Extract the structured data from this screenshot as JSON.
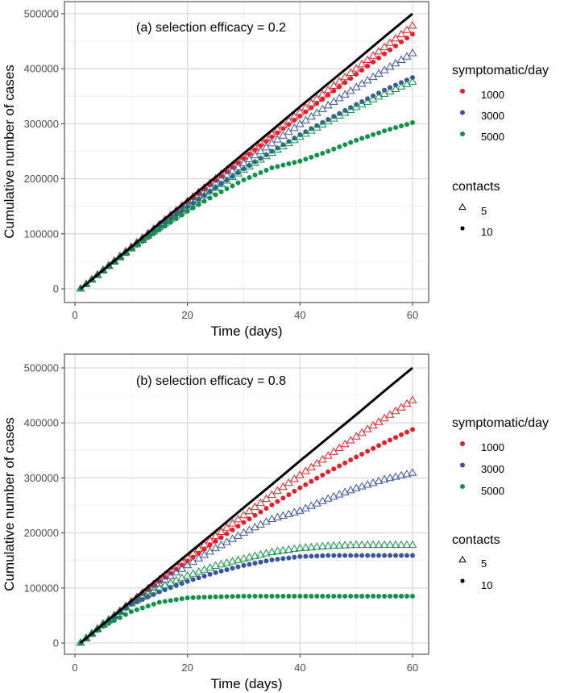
{
  "colors": {
    "1000": "#ee1c25",
    "3000": "#3a53a4",
    "5000": "#0f9447",
    "baseline": "#000000"
  },
  "chart_data": [
    {
      "type": "scatter",
      "annotation": "(a) selection efficacy = 0.2",
      "xlabel": "Time (days)",
      "ylabel": "Cumulative number of cases",
      "xlim": [
        0,
        60
      ],
      "ylim": [
        0,
        500000
      ],
      "xticks": [
        "0",
        "20",
        "40",
        "60"
      ],
      "yticks": [
        "0",
        "100000",
        "200000",
        "300000",
        "400000",
        "500000"
      ],
      "grid": true,
      "legend_position": "right",
      "legend": {
        "color_title": "symptomatic/day",
        "color_entries": [
          "1000",
          "3000",
          "5000"
        ],
        "shape_title": "contacts",
        "shape_entries": [
          {
            "label": "5",
            "shape": "open-triangle"
          },
          {
            "label": "10",
            "shape": "filled-circle"
          }
        ]
      },
      "x": [
        1,
        5,
        10,
        15,
        20,
        25,
        30,
        35,
        40,
        45,
        50,
        55,
        60
      ],
      "line": {
        "values": [
          0,
          34000,
          76000,
          119000,
          161000,
          203000,
          246000,
          288000,
          331000,
          373000,
          415000,
          458000,
          500000
        ]
      },
      "series": [
        {
          "symptomatic": "1000",
          "contacts": "5",
          "values": [
            0,
            34000,
            76000,
            117000,
            159000,
            200000,
            240000,
            281000,
            321000,
            361000,
            400000,
            439000,
            478000
          ]
        },
        {
          "symptomatic": "1000",
          "contacts": "10",
          "values": [
            0,
            34000,
            75000,
            117000,
            157000,
            197000,
            237000,
            276000,
            314000,
            352000,
            390000,
            427000,
            463000
          ]
        },
        {
          "symptomatic": "3000",
          "contacts": "5",
          "values": [
            0,
            34000,
            75000,
            115000,
            154000,
            192000,
            228000,
            264000,
            299000,
            333000,
            366000,
            397000,
            428000
          ]
        },
        {
          "symptomatic": "3000",
          "contacts": "10",
          "values": [
            0,
            33000,
            74000,
            112000,
            149000,
            184000,
            218000,
            250000,
            280000,
            308000,
            335000,
            361000,
            384000
          ]
        },
        {
          "symptomatic": "5000",
          "contacts": "5",
          "values": [
            0,
            33000,
            73000,
            112000,
            148000,
            183000,
            216000,
            247000,
            276000,
            304000,
            330000,
            354000,
            376000
          ]
        },
        {
          "symptomatic": "5000",
          "contacts": "10",
          "values": [
            0,
            33000,
            72000,
            107000,
            141000,
            171000,
            198000,
            220000,
            232000,
            250000,
            270000,
            287000,
            302000
          ]
        }
      ]
    },
    {
      "type": "scatter",
      "annotation": "(b) selection efficacy = 0.8",
      "xlabel": "Time (days)",
      "ylabel": "Cumulative number of cases",
      "xlim": [
        0,
        60
      ],
      "ylim": [
        0,
        500000
      ],
      "xticks": [
        "0",
        "20",
        "40",
        "60"
      ],
      "yticks": [
        "0",
        "100000",
        "200000",
        "300000",
        "400000",
        "500000"
      ],
      "grid": true,
      "legend_position": "right",
      "legend": {
        "color_title": "symptomatic/day",
        "color_entries": [
          "1000",
          "3000",
          "5000"
        ],
        "shape_title": "contacts",
        "shape_entries": [
          {
            "label": "5",
            "shape": "open-triangle"
          },
          {
            "label": "10",
            "shape": "filled-circle"
          }
        ]
      },
      "x": [
        1,
        5,
        10,
        15,
        20,
        25,
        30,
        35,
        40,
        45,
        50,
        55,
        60
      ],
      "line": {
        "values": [
          0,
          34000,
          76000,
          119000,
          161000,
          203000,
          246000,
          288000,
          331000,
          373000,
          415000,
          458000,
          500000
        ]
      },
      "series": [
        {
          "symptomatic": "1000",
          "contacts": "5",
          "values": [
            0,
            34000,
            75000,
            115000,
            155000,
            194000,
            232000,
            269000,
            305000,
            340000,
            375000,
            408000,
            441000
          ]
        },
        {
          "symptomatic": "1000",
          "contacts": "10",
          "values": [
            0,
            33000,
            74000,
            112000,
            149000,
            185000,
            219000,
            251000,
            282000,
            311000,
            338000,
            364000,
            388000
          ]
        },
        {
          "symptomatic": "3000",
          "contacts": "5",
          "values": [
            0,
            33000,
            72000,
            108000,
            141000,
            172000,
            200000,
            225000,
            240000,
            262000,
            281000,
            297000,
            309000
          ]
        },
        {
          "symptomatic": "3000",
          "contacts": "10",
          "values": [
            0,
            34000,
            70000,
            93000,
            112000,
            128000,
            141000,
            151000,
            157000,
            159000,
            159000,
            159000,
            159000
          ]
        },
        {
          "symptomatic": "5000",
          "contacts": "5",
          "values": [
            0,
            35000,
            72000,
            100000,
            122000,
            140000,
            153000,
            165000,
            172000,
            176000,
            178000,
            178000,
            178000
          ]
        },
        {
          "symptomatic": "5000",
          "contacts": "10",
          "values": [
            0,
            30000,
            57000,
            74000,
            82000,
            84000,
            85000,
            85000,
            85000,
            85000,
            85000,
            85000,
            85000
          ]
        }
      ]
    }
  ]
}
